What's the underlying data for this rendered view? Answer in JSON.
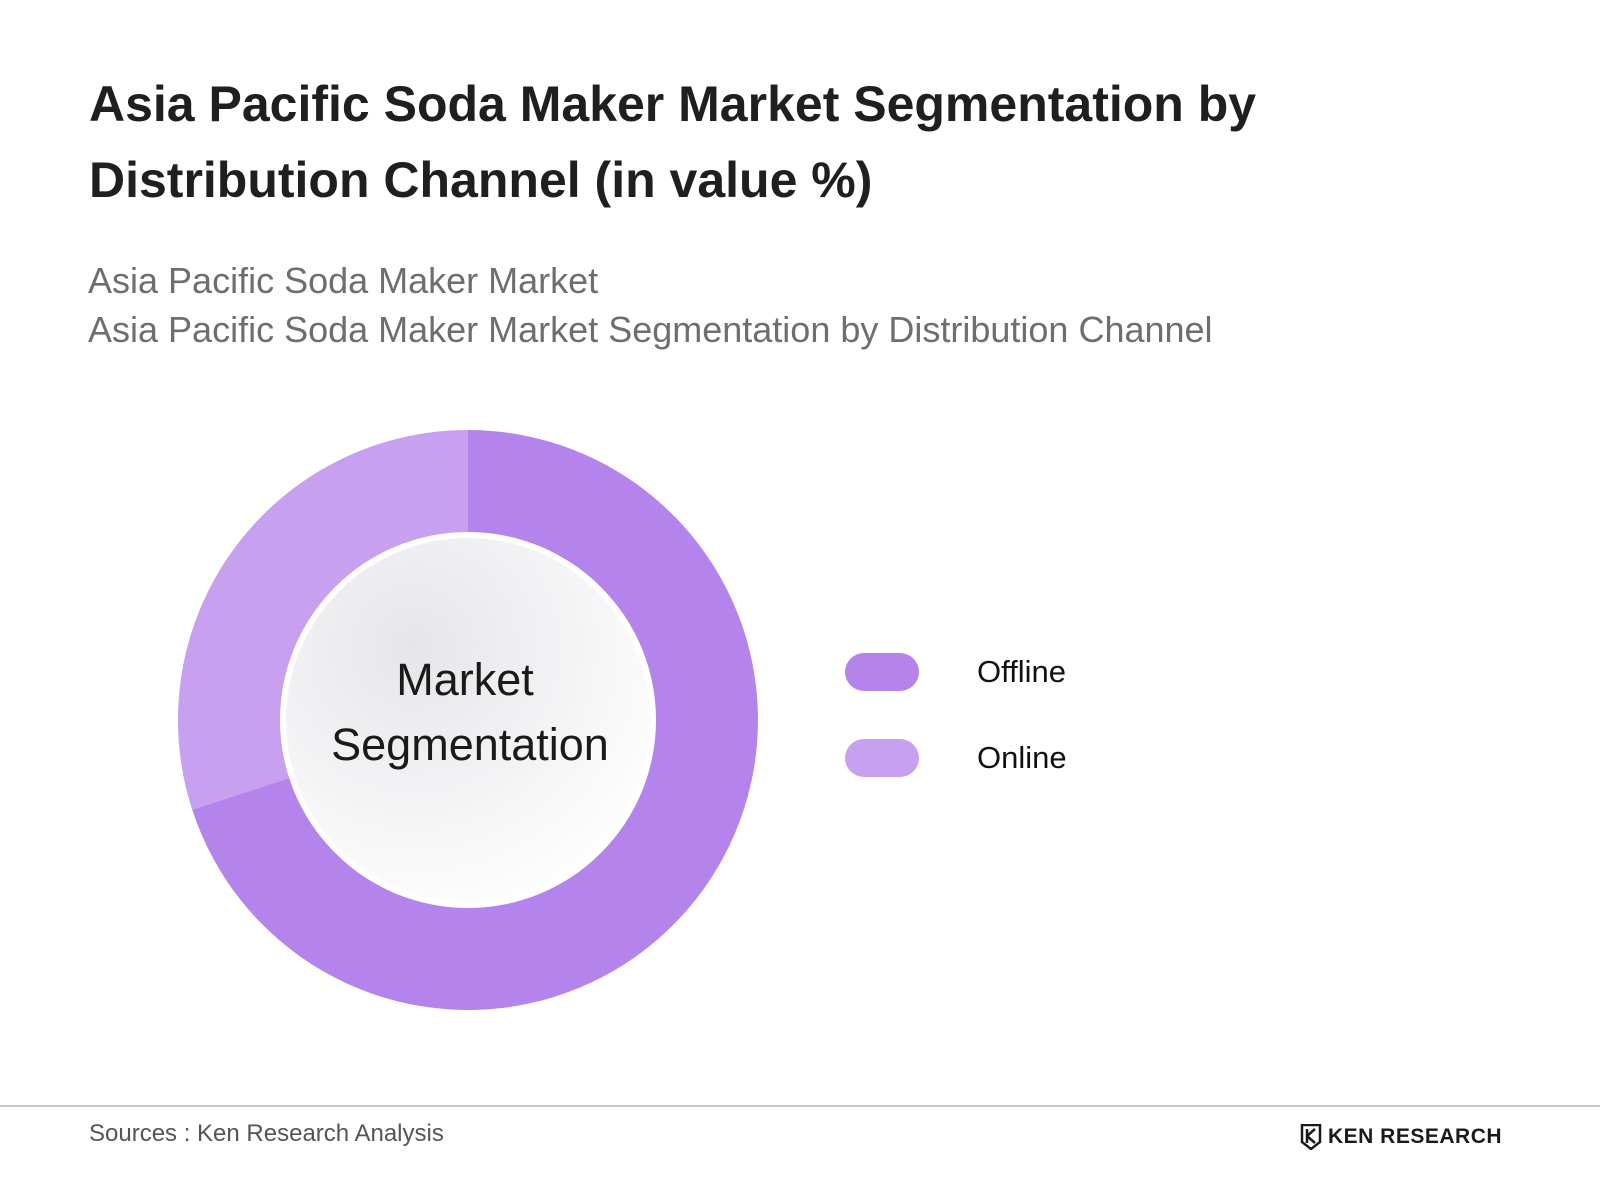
{
  "header": {
    "title": "Asia Pacific Soda Maker Market Segmentation by Distribution Channel (in value %)",
    "subtitle_line1": "Asia Pacific Soda Maker Market",
    "subtitle_line2": "Asia Pacific Soda Maker Market Segmentation by Distribution Channel"
  },
  "chart_data": {
    "type": "pie",
    "variant": "donut",
    "center_label_line1": "Market",
    "center_label_line2": "Segmentation",
    "legend_position": "right",
    "series": [
      {
        "name": "Offline",
        "value": 70,
        "color": "#b484ec"
      },
      {
        "name": "Online",
        "value": 30,
        "color": "#c7a0ef"
      }
    ]
  },
  "footer": {
    "source": "Sources : Ken Research Analysis",
    "brand": "KEN RESEARCH"
  }
}
